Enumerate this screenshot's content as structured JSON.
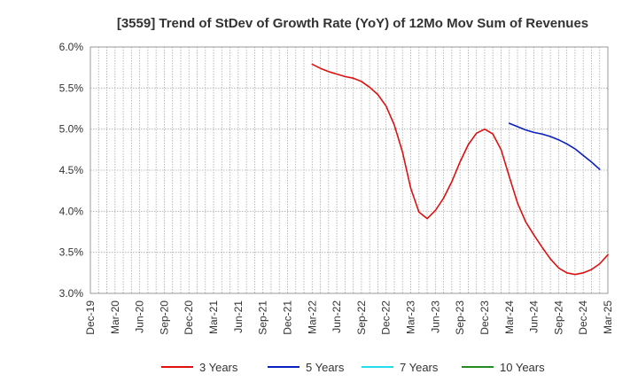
{
  "chart_data": {
    "type": "line",
    "title": "[3559]  Trend of StDev of Growth Rate (YoY) of 12Mo Mov Sum of Revenues",
    "xlabel": "",
    "ylabel": "",
    "ylim": [
      3.0,
      6.0
    ],
    "y_ticks": [
      "3.0%",
      "3.5%",
      "4.0%",
      "4.5%",
      "5.0%",
      "5.5%",
      "6.0%"
    ],
    "x_ticks": [
      "Dec-19",
      "Mar-20",
      "Jun-20",
      "Sep-20",
      "Dec-20",
      "Mar-21",
      "Jun-21",
      "Sep-21",
      "Dec-21",
      "Mar-22",
      "Jun-22",
      "Sep-22",
      "Dec-22",
      "Mar-23",
      "Jun-23",
      "Sep-23",
      "Dec-23",
      "Mar-24",
      "Jun-24",
      "Sep-24",
      "Dec-24",
      "Mar-25"
    ],
    "grid": true,
    "legend_position": "bottom",
    "series": [
      {
        "name": "3 Years",
        "color": "#dd1111",
        "start_month_index": 27,
        "values": [
          5.79,
          5.74,
          5.7,
          5.67,
          5.64,
          5.62,
          5.58,
          5.51,
          5.42,
          5.28,
          5.05,
          4.72,
          4.28,
          3.99,
          3.91,
          4.01,
          4.16,
          4.36,
          4.6,
          4.81,
          4.95,
          5.0,
          4.94,
          4.75,
          4.42,
          4.1,
          3.87,
          3.71,
          3.56,
          3.42,
          3.31,
          3.25,
          3.23,
          3.25,
          3.29,
          3.36,
          3.47
        ]
      },
      {
        "name": "5 Years",
        "color": "#0b1fbf",
        "start_month_index": 51,
        "values": [
          5.07,
          5.03,
          4.99,
          4.96,
          4.94,
          4.91,
          4.87,
          4.82,
          4.76,
          4.68,
          4.6,
          4.51
        ]
      },
      {
        "name": "7 Years",
        "color": "#22ddee",
        "start_month_index": 0,
        "values": []
      },
      {
        "name": "10 Years",
        "color": "#228b22",
        "start_month_index": 0,
        "values": []
      }
    ]
  }
}
